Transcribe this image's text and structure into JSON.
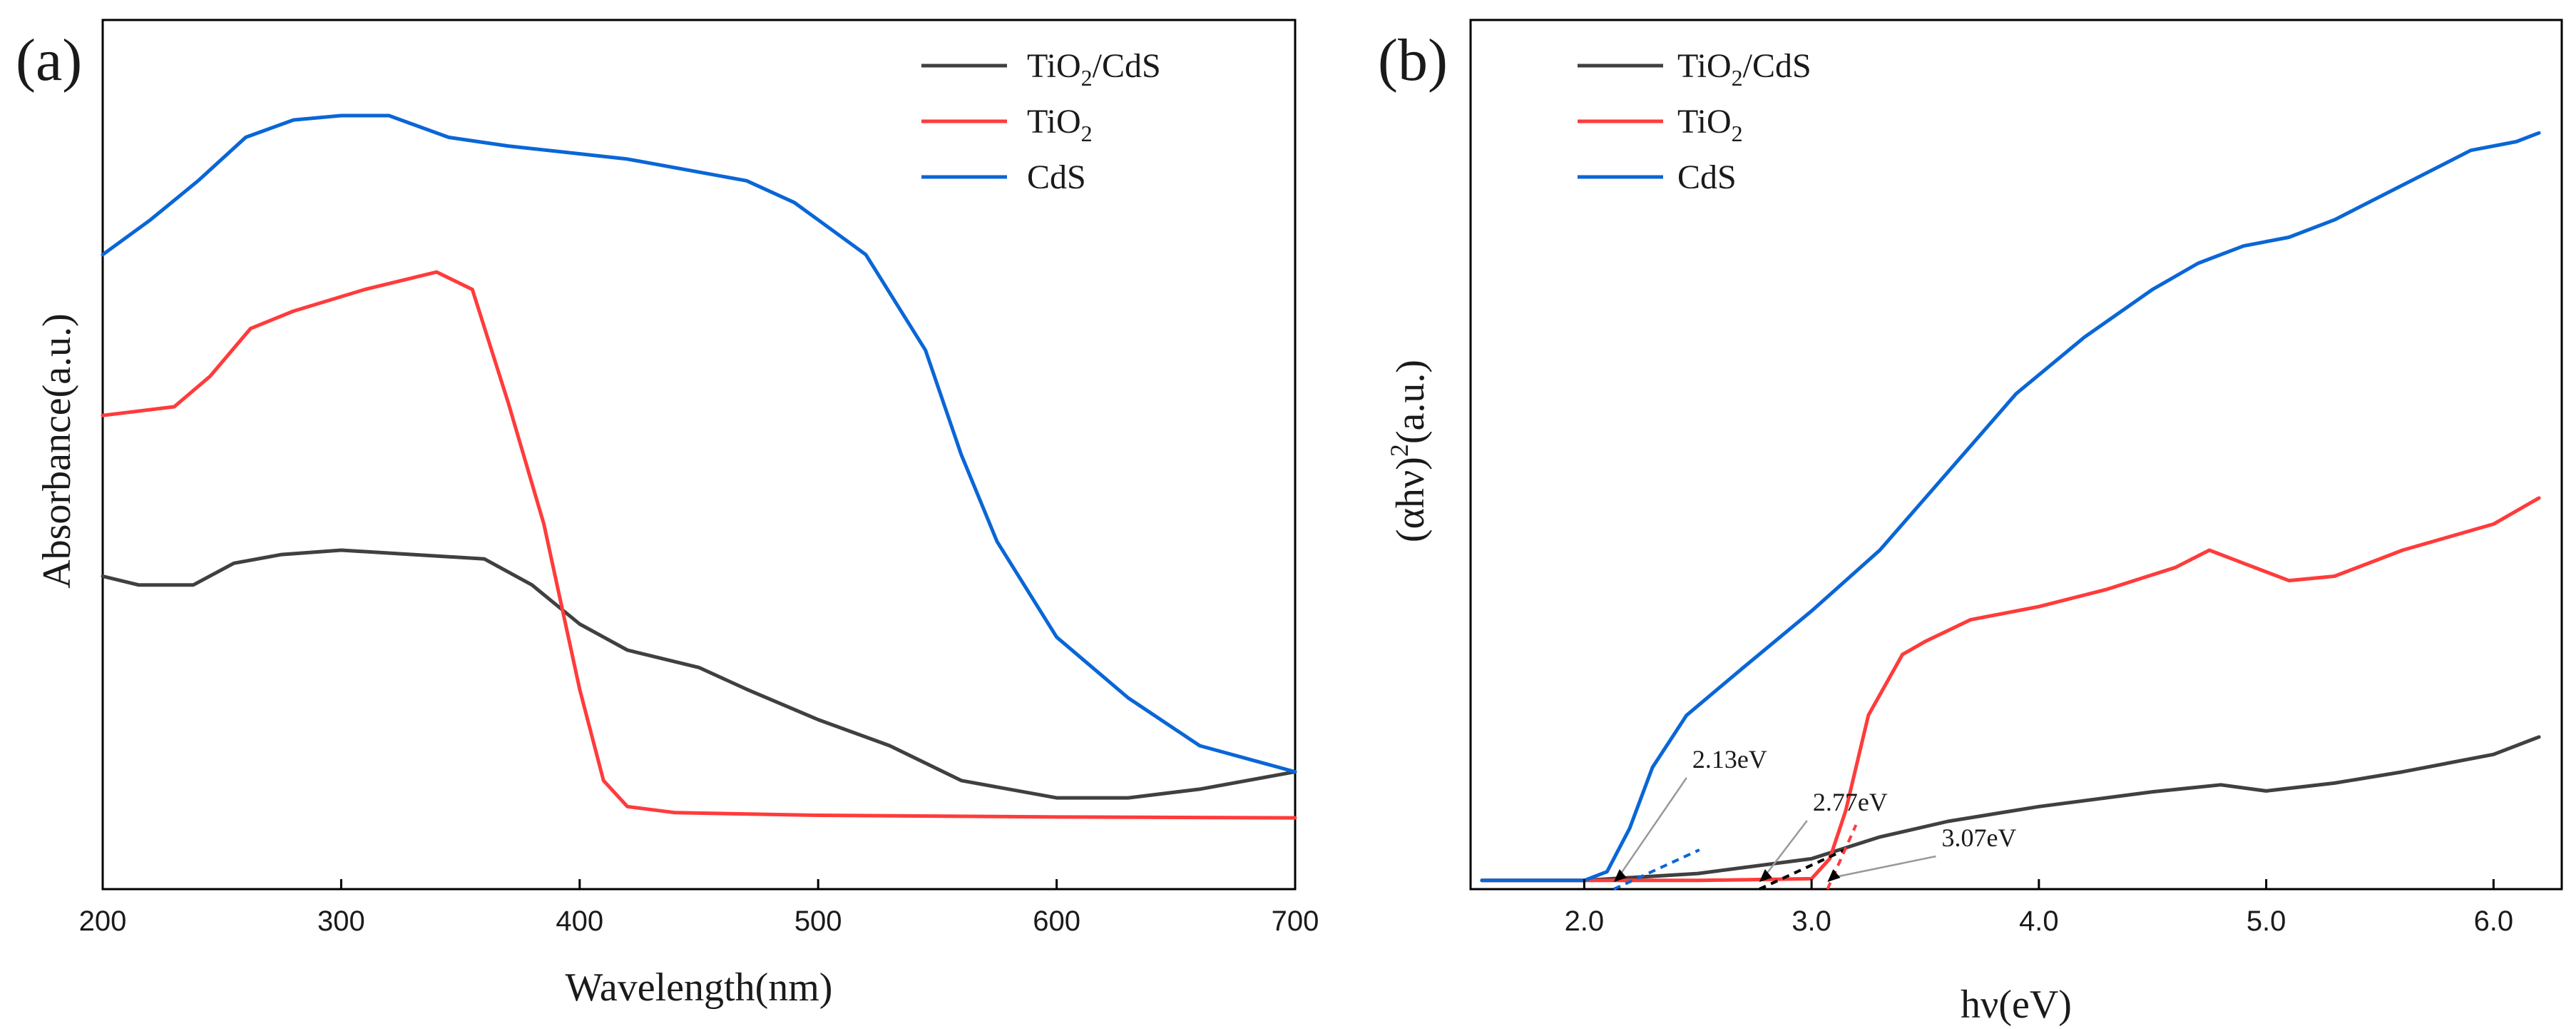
{
  "chart_data": [
    {
      "panel": "(a)",
      "type": "line",
      "xlabel": "Wavelength(nm)",
      "ylabel": "Absorbance(a.u.)",
      "xlim": [
        200,
        700
      ],
      "ylim": [
        0,
        1
      ],
      "xticks": [
        200,
        300,
        400,
        500,
        600,
        700
      ],
      "show_y_ticks": false,
      "legend_position": "top-right",
      "series": [
        {
          "name": "TiO2/CdS",
          "sub": {
            "prefix": "TiO",
            "sub": "2",
            "suffix": "/CdS"
          },
          "color": "#404040",
          "x": [
            200,
            215,
            238,
            255,
            275,
            300,
            330,
            360,
            380,
            400,
            420,
            450,
            470,
            500,
            530,
            560,
            600,
            630,
            660,
            700
          ],
          "y": [
            0.36,
            0.35,
            0.35,
            0.375,
            0.385,
            0.39,
            0.385,
            0.38,
            0.35,
            0.305,
            0.275,
            0.255,
            0.23,
            0.195,
            0.165,
            0.125,
            0.105,
            0.105,
            0.115,
            0.135
          ]
        },
        {
          "name": "TiO2",
          "sub": {
            "prefix": "TiO",
            "sub": "2",
            "suffix": ""
          },
          "color": "#ff3b3b",
          "x": [
            200,
            230,
            245,
            262,
            280,
            310,
            340,
            355,
            370,
            385,
            400,
            410,
            420,
            440,
            500,
            600,
            700
          ],
          "y": [
            0.545,
            0.555,
            0.59,
            0.645,
            0.665,
            0.69,
            0.71,
            0.69,
            0.56,
            0.42,
            0.23,
            0.125,
            0.095,
            0.088,
            0.085,
            0.083,
            0.082
          ]
        },
        {
          "name": "CdS",
          "sub": {
            "prefix": "CdS",
            "sub": "",
            "suffix": ""
          },
          "color": "#0a66d6",
          "x": [
            200,
            220,
            240,
            260,
            280,
            300,
            320,
            345,
            370,
            420,
            470,
            490,
            520,
            545,
            560,
            575,
            600,
            630,
            660,
            700
          ],
          "y": [
            0.73,
            0.77,
            0.815,
            0.865,
            0.885,
            0.89,
            0.89,
            0.865,
            0.855,
            0.84,
            0.815,
            0.79,
            0.73,
            0.62,
            0.5,
            0.4,
            0.29,
            0.22,
            0.165,
            0.135
          ]
        }
      ]
    },
    {
      "panel": "(b)",
      "type": "line",
      "xlabel": "hν(eV)",
      "ylabel": "(αhν)²(a.u.)",
      "ylabel_parts": {
        "prefix": "(αhν)",
        "sup": "2",
        "suffix": "(a.u.)"
      },
      "xlim": [
        1.5,
        6.3
      ],
      "ylim": [
        0,
        1
      ],
      "xticks": [
        "2.0",
        "3.0",
        "4.0",
        "5.0",
        "6.0"
      ],
      "show_y_ticks": false,
      "legend_position": "top-left",
      "series": [
        {
          "name": "TiO2/CdS",
          "sub": {
            "prefix": "TiO",
            "sub": "2",
            "suffix": "/CdS"
          },
          "color": "#404040",
          "x": [
            1.55,
            2.0,
            2.5,
            3.0,
            3.3,
            3.6,
            4.0,
            4.5,
            4.8,
            5.0,
            5.3,
            5.6,
            6.0,
            6.2
          ],
          "y": [
            0.01,
            0.01,
            0.018,
            0.035,
            0.06,
            0.078,
            0.095,
            0.112,
            0.12,
            0.113,
            0.122,
            0.135,
            0.155,
            0.175
          ]
        },
        {
          "name": "TiO2",
          "sub": {
            "prefix": "TiO",
            "sub": "2",
            "suffix": ""
          },
          "color": "#ff3b3b",
          "x": [
            1.55,
            2.5,
            3.0,
            3.08,
            3.15,
            3.25,
            3.4,
            3.5,
            3.7,
            4.0,
            4.3,
            4.6,
            4.75,
            4.9,
            5.1,
            5.3,
            5.6,
            6.0,
            6.2
          ],
          "y": [
            0.01,
            0.01,
            0.012,
            0.035,
            0.09,
            0.2,
            0.27,
            0.285,
            0.31,
            0.325,
            0.345,
            0.37,
            0.39,
            0.375,
            0.355,
            0.36,
            0.39,
            0.42,
            0.45
          ]
        },
        {
          "name": "CdS",
          "sub": {
            "prefix": "CdS",
            "sub": "",
            "suffix": ""
          },
          "color": "#0a66d6",
          "x": [
            1.55,
            2.0,
            2.1,
            2.2,
            2.3,
            2.45,
            2.7,
            3.0,
            3.3,
            3.6,
            3.9,
            4.2,
            4.5,
            4.7,
            4.9,
            5.1,
            5.3,
            5.6,
            5.9,
            6.1,
            6.2
          ],
          "y": [
            0.01,
            0.01,
            0.02,
            0.07,
            0.14,
            0.2,
            0.255,
            0.32,
            0.39,
            0.48,
            0.57,
            0.635,
            0.69,
            0.72,
            0.74,
            0.75,
            0.77,
            0.81,
            0.85,
            0.86,
            0.87
          ]
        }
      ],
      "annotations": [
        {
          "label": "2.13eV",
          "x": 2.13,
          "color": "#0a66d6"
        },
        {
          "label": "2.77eV",
          "x": 2.77,
          "color": "#000000"
        },
        {
          "label": "3.07eV",
          "x": 3.07,
          "color": "#ff3b3b"
        }
      ]
    }
  ]
}
